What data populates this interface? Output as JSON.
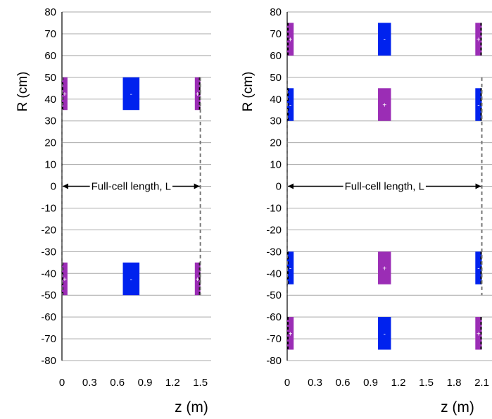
{
  "chart_data": [
    {
      "type": "diagram",
      "xlabel": "z (m)",
      "ylabel": "R (cm)",
      "xticks": [
        "0",
        "0.3",
        "0.6",
        "0.9",
        "1.2",
        "1.5"
      ],
      "xtick_values": [
        0,
        0.3,
        0.6,
        0.9,
        1.2,
        1.5
      ],
      "yticks": [
        "80",
        "70",
        "60",
        "50",
        "40",
        "30",
        "20",
        "10",
        "0",
        "-10",
        "-20",
        "-30",
        "-40",
        "-50",
        "-60",
        "-70",
        "-80"
      ],
      "xlim": [
        0,
        1.7
      ],
      "ylim": [
        -80,
        80
      ],
      "grid": true,
      "annotation": "Full-cell length, L",
      "annotation_span": [
        0,
        1.5
      ],
      "cell_boundaries": [
        0,
        1.5
      ],
      "coils": [
        {
          "z": [
            0,
            0.06
          ],
          "r": [
            35,
            50
          ],
          "sign": "+",
          "color": "#9b2db5",
          "half": true
        },
        {
          "z": [
            0.66,
            0.84
          ],
          "r": [
            35,
            50
          ],
          "sign": "-",
          "color": "#0022ee"
        },
        {
          "z": [
            1.44,
            1.5
          ],
          "r": [
            35,
            50
          ],
          "sign": "+",
          "color": "#9b2db5",
          "half": true
        },
        {
          "z": [
            0,
            0.06
          ],
          "r": [
            -50,
            -35
          ],
          "sign": "+",
          "color": "#9b2db5",
          "half": true
        },
        {
          "z": [
            0.66,
            0.84
          ],
          "r": [
            -50,
            -35
          ],
          "sign": "-",
          "color": "#0022ee"
        },
        {
          "z": [
            1.44,
            1.5
          ],
          "r": [
            -50,
            -35
          ],
          "sign": "+",
          "color": "#9b2db5",
          "half": true
        }
      ]
    },
    {
      "type": "diagram",
      "xlabel": "z (m)",
      "ylabel": "R (cm)",
      "xticks": [
        "0",
        "0.3",
        "0.6",
        "0.9",
        "1.2",
        "1.5",
        "1.8",
        "2.1"
      ],
      "xtick_values": [
        0,
        0.3,
        0.6,
        0.9,
        1.2,
        1.5,
        1.8,
        2.1
      ],
      "yticks": [
        "80",
        "70",
        "60",
        "50",
        "40",
        "30",
        "20",
        "10",
        "0",
        "-10",
        "-20",
        "-30",
        "-40",
        "-50",
        "-60",
        "-70",
        "-80"
      ],
      "xlim": [
        0,
        2.2
      ],
      "ylim": [
        -80,
        80
      ],
      "grid": true,
      "annotation": "Full-cell length, L",
      "annotation_span": [
        0,
        2.1
      ],
      "cell_boundaries": [
        0,
        2.1
      ],
      "coils": [
        {
          "z": [
            0,
            0.07
          ],
          "r": [
            60,
            75
          ],
          "sign": "+",
          "color": "#9b2db5",
          "half": true
        },
        {
          "z": [
            0.98,
            1.12
          ],
          "r": [
            60,
            75
          ],
          "sign": "-",
          "color": "#0022ee"
        },
        {
          "z": [
            2.03,
            2.1
          ],
          "r": [
            60,
            75
          ],
          "sign": "+",
          "color": "#9b2db5",
          "half": true
        },
        {
          "z": [
            0,
            0.07
          ],
          "r": [
            30,
            45
          ],
          "sign": "-",
          "color": "#0022ee",
          "half": true
        },
        {
          "z": [
            0.98,
            1.12
          ],
          "r": [
            30,
            45
          ],
          "sign": "+",
          "color": "#9b2db5"
        },
        {
          "z": [
            2.03,
            2.1
          ],
          "r": [
            30,
            45
          ],
          "sign": "-",
          "color": "#0022ee",
          "half": true
        },
        {
          "z": [
            0,
            0.07
          ],
          "r": [
            -45,
            -30
          ],
          "sign": "-",
          "color": "#0022ee",
          "half": true
        },
        {
          "z": [
            0.98,
            1.12
          ],
          "r": [
            -45,
            -30
          ],
          "sign": "+",
          "color": "#9b2db5"
        },
        {
          "z": [
            2.03,
            2.1
          ],
          "r": [
            -45,
            -30
          ],
          "sign": "-",
          "color": "#0022ee",
          "half": true
        },
        {
          "z": [
            0,
            0.07
          ],
          "r": [
            -75,
            -60
          ],
          "sign": "+",
          "color": "#9b2db5",
          "half": true
        },
        {
          "z": [
            0.98,
            1.12
          ],
          "r": [
            -75,
            -60
          ],
          "sign": "-",
          "color": "#0022ee"
        },
        {
          "z": [
            2.03,
            2.1
          ],
          "r": [
            -75,
            -60
          ],
          "sign": "+",
          "color": "#9b2db5",
          "half": true
        }
      ]
    }
  ]
}
